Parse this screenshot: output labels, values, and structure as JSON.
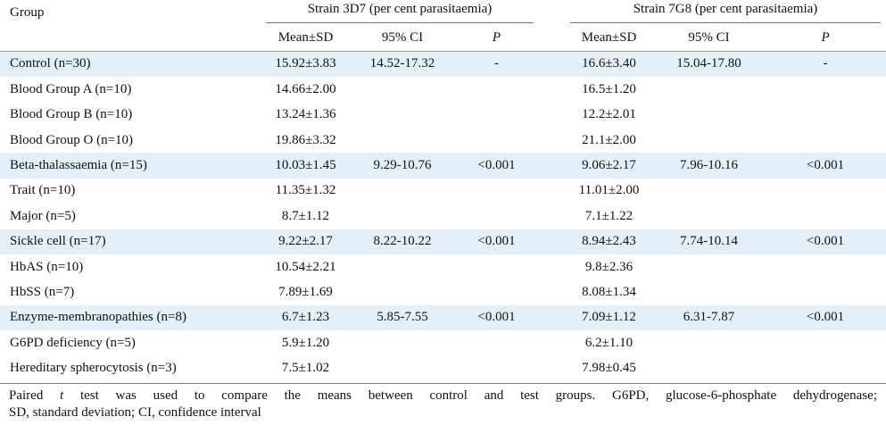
{
  "table": {
    "group_header": "Group",
    "strain_1_header": "Strain 3D7 (per cent parasitaemia)",
    "strain_2_header": "Strain 7G8 (per cent parasitaemia)",
    "sub_headers": [
      "Mean±SD",
      "95% CI",
      "P"
    ],
    "rows": [
      {
        "group": "Control (n=30)",
        "s1_mean": "15.92±3.83",
        "s1_ci": "14.52-17.32",
        "s1_p": "-",
        "s2_mean": "16.6±3.40",
        "s2_ci": "15.04-17.80",
        "s2_p": "-",
        "shaded": true
      },
      {
        "group": "Blood Group A (n=10)",
        "s1_mean": "14.66±2.00",
        "s1_ci": "",
        "s1_p": "",
        "s2_mean": "16.5±1.20",
        "s2_ci": "",
        "s2_p": "",
        "shaded": false
      },
      {
        "group": "Blood Group B (n=10)",
        "s1_mean": "13.24±1.36",
        "s1_ci": "",
        "s1_p": "",
        "s2_mean": "12.2±2.01",
        "s2_ci": "",
        "s2_p": "",
        "shaded": false
      },
      {
        "group": "Blood Group O (n=10)",
        "s1_mean": "19.86±3.32",
        "s1_ci": "",
        "s1_p": "",
        "s2_mean": "21.1±2.00",
        "s2_ci": "",
        "s2_p": "",
        "shaded": false
      },
      {
        "group": "Beta-thalassaemia (n=15)",
        "s1_mean": "10.03±1.45",
        "s1_ci": "9.29-10.76",
        "s1_p": "<0.001",
        "s2_mean": "9.06±2.17",
        "s2_ci": "7.96-10.16",
        "s2_p": "<0.001",
        "shaded": true
      },
      {
        "group": "Trait (n=10)",
        "s1_mean": "11.35±1.32",
        "s1_ci": "",
        "s1_p": "",
        "s2_mean": "11.01±2.00",
        "s2_ci": "",
        "s2_p": "",
        "shaded": false
      },
      {
        "group": "Major (n=5)",
        "s1_mean": "8.7±1.12",
        "s1_ci": "",
        "s1_p": "",
        "s2_mean": "7.1±1.22",
        "s2_ci": "",
        "s2_p": "",
        "shaded": false
      },
      {
        "group": "Sickle cell (n=17)",
        "s1_mean": "9.22±2.17",
        "s1_ci": "8.22-10.22",
        "s1_p": "<0.001",
        "s2_mean": "8.94±2.43",
        "s2_ci": "7.74-10.14",
        "s2_p": "<0.001",
        "shaded": true
      },
      {
        "group": "HbAS (n=10)",
        "s1_mean": "10.54±2.21",
        "s1_ci": "",
        "s1_p": "",
        "s2_mean": "9.8±2.36",
        "s2_ci": "",
        "s2_p": "",
        "shaded": false
      },
      {
        "group": "HbSS (n=7)",
        "s1_mean": "7.89±1.69",
        "s1_ci": "",
        "s1_p": "",
        "s2_mean": "8.08±1.34",
        "s2_ci": "",
        "s2_p": "",
        "shaded": false
      },
      {
        "group": "Enzyme-membranopathies (n=8)",
        "s1_mean": "6.7±1.23",
        "s1_ci": "5.85-7.55",
        "s1_p": "<0.001",
        "s2_mean": "7.09±1.12",
        "s2_ci": "6.31-7.87",
        "s2_p": "<0.001",
        "shaded": true
      },
      {
        "group": "G6PD deficiency (n=5)",
        "s1_mean": "5.9±1.20",
        "s1_ci": "",
        "s1_p": "",
        "s2_mean": "6.2±1.10",
        "s2_ci": "",
        "s2_p": "",
        "shaded": false
      },
      {
        "group": "Hereditary spherocytosis (n=3)",
        "s1_mean": "7.5±1.02",
        "s1_ci": "",
        "s1_p": "",
        "s2_mean": "7.98±0.45",
        "s2_ci": "",
        "s2_p": "",
        "shaded": false
      }
    ]
  },
  "footnote": {
    "line1_pre": "Paired ",
    "line1_t": "t",
    "line1_post": " test was used to compare the means between control and test groups. G6PD, glucose-6-phosphate dehydrogenase;",
    "line2": "SD, standard deviation; CI, confidence interval"
  },
  "colors": {
    "row_shade": "#e3f0f9",
    "rule": "#7d7d7d"
  }
}
